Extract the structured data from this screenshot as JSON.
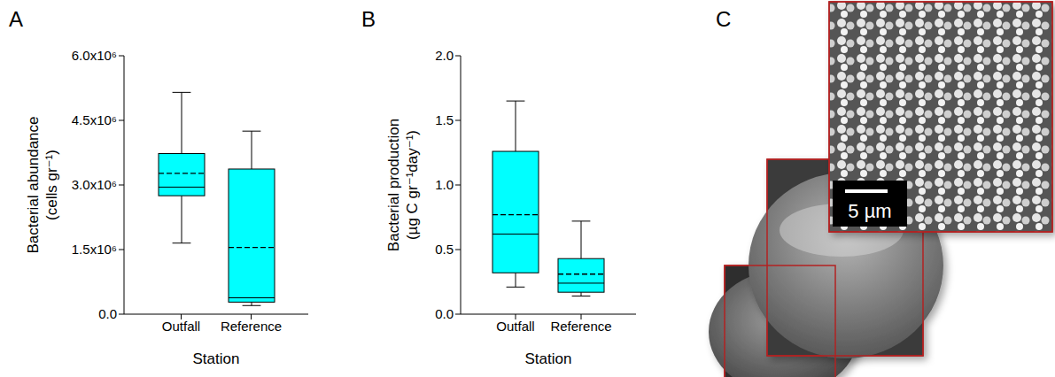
{
  "chart_data": [
    {
      "panel": "A",
      "type": "box",
      "categories": [
        "Outfall",
        "Reference"
      ],
      "boxes": [
        {
          "min": 1650000,
          "q1": 2750000,
          "median": 2950000,
          "mean": 3270000,
          "q3": 3730000,
          "max": 5150000
        },
        {
          "min": 200000,
          "q1": 280000,
          "median": 380000,
          "mean": 1550000,
          "q3": 3370000,
          "max": 4250000
        }
      ],
      "x_label": "Station",
      "y_label": [
        "Bacterial abundance",
        "(cells gr⁻¹)"
      ],
      "ylim": [
        0,
        6000000
      ],
      "yticks": [
        {
          "value": 0,
          "label": "0.0"
        },
        {
          "value": 1500000,
          "label": "1.5x10⁶"
        },
        {
          "value": 3000000,
          "label": "3.0x10⁶"
        },
        {
          "value": 4500000,
          "label": "4.5x10⁶"
        },
        {
          "value": 6000000,
          "label": "6.0x10⁶"
        }
      ],
      "color": "#00ffff",
      "grid": false
    },
    {
      "panel": "B",
      "type": "box",
      "categories": [
        "Outfall",
        "Reference"
      ],
      "boxes": [
        {
          "min": 0.21,
          "q1": 0.32,
          "median": 0.62,
          "mean": 0.77,
          "q3": 1.26,
          "max": 1.65
        },
        {
          "min": 0.14,
          "q1": 0.17,
          "median": 0.24,
          "mean": 0.31,
          "q3": 0.43,
          "max": 0.72
        }
      ],
      "x_label": "Station",
      "y_label": [
        "Bacterial production",
        "(µg C gr⁻¹day⁻¹)"
      ],
      "ylim": [
        0,
        2
      ],
      "yticks": [
        {
          "value": 0,
          "label": "0.0"
        },
        0.5,
        {
          "value": 1,
          "label": "1.0"
        },
        1.5,
        {
          "value": 2,
          "label": "2.0"
        }
      ],
      "color": "#00ffff",
      "grid": false
    }
  ],
  "micrograph": {
    "panel": "C",
    "scale_bar": "5 µm"
  }
}
